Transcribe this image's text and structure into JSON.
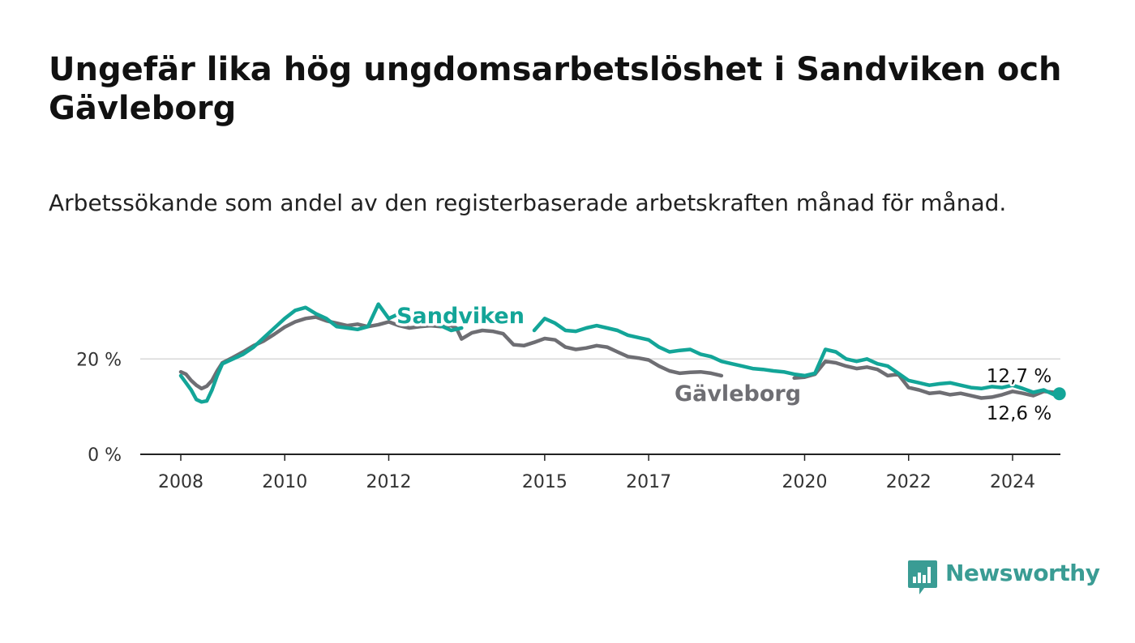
{
  "title": "Ungefär lika hög ungdomsarbetslöshet i Sandviken och Gävleborg",
  "subtitle": "Arbetssökande som andel av den registerbaserade arbetskraften månad för månad.",
  "brand": {
    "name": "Newsworthy",
    "icon": "bar-chart-speech-bubble-icon",
    "color": "#3a9c94"
  },
  "chart_data": {
    "type": "line",
    "xlim": [
      2008,
      2025.7
    ],
    "ylim": [
      0,
      35
    ],
    "y_ticks": [
      0,
      20
    ],
    "y_tick_labels": [
      "0 %",
      "20 %"
    ],
    "x_ticks": [
      2008,
      2010,
      2012,
      2015,
      2017,
      2020,
      2022,
      2024
    ],
    "x_tick_labels": [
      "2008",
      "2010",
      "2012",
      "2015",
      "2017",
      "2020",
      "2022",
      "2024"
    ],
    "grid": "horizontal",
    "series": [
      {
        "name": "Gävleborg",
        "color": "#6e6e73",
        "end_label": "12,6 %",
        "points": [
          [
            2008.0,
            17.3
          ],
          [
            2008.1,
            16.8
          ],
          [
            2008.2,
            15.5
          ],
          [
            2008.3,
            14.5
          ],
          [
            2008.4,
            13.8
          ],
          [
            2008.5,
            14.3
          ],
          [
            2008.6,
            15.5
          ],
          [
            2008.7,
            17.5
          ],
          [
            2008.8,
            19.2
          ],
          [
            2009.0,
            20.3
          ],
          [
            2009.2,
            21.5
          ],
          [
            2009.4,
            22.8
          ],
          [
            2009.6,
            23.8
          ],
          [
            2009.8,
            25.2
          ],
          [
            2010.0,
            26.7
          ],
          [
            2010.2,
            27.8
          ],
          [
            2010.4,
            28.5
          ],
          [
            2010.6,
            28.8
          ],
          [
            2010.8,
            28.0
          ],
          [
            2011.0,
            27.5
          ],
          [
            2011.2,
            27.0
          ],
          [
            2011.4,
            27.3
          ],
          [
            2011.6,
            26.8
          ],
          [
            2011.8,
            27.2
          ],
          [
            2012.0,
            27.8
          ],
          [
            2012.2,
            27.0
          ],
          [
            2012.4,
            26.5
          ],
          [
            2012.6,
            26.8
          ],
          [
            2012.8,
            27.0
          ],
          [
            2013.0,
            26.8
          ],
          [
            2013.2,
            27.0
          ],
          [
            2013.3,
            26.5
          ],
          [
            2013.4,
            24.2
          ],
          [
            2013.6,
            25.5
          ],
          [
            2013.8,
            26.0
          ],
          [
            2014.0,
            25.8
          ],
          [
            2014.2,
            25.3
          ],
          [
            2014.4,
            23.0
          ],
          [
            2014.6,
            22.8
          ],
          [
            2014.8,
            23.5
          ],
          [
            2015.0,
            24.3
          ],
          [
            2015.2,
            24.0
          ],
          [
            2015.4,
            22.5
          ],
          [
            2015.6,
            22.0
          ],
          [
            2015.8,
            22.3
          ],
          [
            2016.0,
            22.8
          ],
          [
            2016.2,
            22.5
          ],
          [
            2016.4,
            21.5
          ],
          [
            2016.6,
            20.5
          ],
          [
            2016.8,
            20.2
          ],
          [
            2017.0,
            19.8
          ],
          [
            2017.2,
            18.5
          ],
          [
            2017.4,
            17.5
          ],
          [
            2017.6,
            17.0
          ],
          [
            2017.8,
            17.2
          ],
          [
            2018.0,
            17.3
          ],
          [
            2018.2,
            17.0
          ],
          [
            2018.4,
            16.5
          ],
          [
            2019.8,
            16.0
          ],
          [
            2020.0,
            16.2
          ],
          [
            2020.2,
            16.8
          ],
          [
            2020.4,
            19.5
          ],
          [
            2020.6,
            19.2
          ],
          [
            2020.8,
            18.5
          ],
          [
            2021.0,
            18.0
          ],
          [
            2021.2,
            18.3
          ],
          [
            2021.4,
            17.8
          ],
          [
            2021.6,
            16.5
          ],
          [
            2021.8,
            16.8
          ],
          [
            2022.0,
            14.0
          ],
          [
            2022.2,
            13.5
          ],
          [
            2022.4,
            12.8
          ],
          [
            2022.6,
            13.0
          ],
          [
            2022.8,
            12.5
          ],
          [
            2023.0,
            12.8
          ],
          [
            2023.2,
            12.3
          ],
          [
            2023.4,
            11.8
          ],
          [
            2023.6,
            12.0
          ],
          [
            2023.8,
            12.5
          ],
          [
            2024.0,
            13.2
          ],
          [
            2024.2,
            12.8
          ],
          [
            2024.4,
            12.3
          ],
          [
            2024.6,
            13.2
          ],
          [
            2024.8,
            13.0
          ],
          [
            2024.9,
            12.6
          ]
        ]
      },
      {
        "name": "Sandviken",
        "color": "#13a598",
        "end_label": "12,7 %",
        "points": [
          [
            2008.0,
            16.5
          ],
          [
            2008.1,
            15.0
          ],
          [
            2008.2,
            13.5
          ],
          [
            2008.3,
            11.5
          ],
          [
            2008.4,
            11.0
          ],
          [
            2008.5,
            11.2
          ],
          [
            2008.6,
            13.5
          ],
          [
            2008.7,
            16.5
          ],
          [
            2008.8,
            19.0
          ],
          [
            2009.0,
            20.0
          ],
          [
            2009.2,
            21.0
          ],
          [
            2009.4,
            22.5
          ],
          [
            2009.6,
            24.5
          ],
          [
            2009.8,
            26.5
          ],
          [
            2010.0,
            28.5
          ],
          [
            2010.2,
            30.2
          ],
          [
            2010.4,
            30.8
          ],
          [
            2010.6,
            29.5
          ],
          [
            2010.8,
            28.5
          ],
          [
            2011.0,
            26.8
          ],
          [
            2011.2,
            26.5
          ],
          [
            2011.4,
            26.2
          ],
          [
            2011.6,
            26.8
          ],
          [
            2011.8,
            31.5
          ],
          [
            2012.0,
            28.5
          ],
          [
            2012.2,
            29.5
          ],
          [
            2012.4,
            30.0
          ],
          [
            2012.6,
            29.0
          ],
          [
            2012.8,
            28.0
          ],
          [
            2013.0,
            27.0
          ],
          [
            2013.2,
            26.0
          ],
          [
            2013.4,
            26.5
          ],
          [
            2014.8,
            26.0
          ],
          [
            2015.0,
            28.5
          ],
          [
            2015.2,
            27.5
          ],
          [
            2015.4,
            26.0
          ],
          [
            2015.6,
            25.8
          ],
          [
            2015.8,
            26.5
          ],
          [
            2016.0,
            27.0
          ],
          [
            2016.2,
            26.5
          ],
          [
            2016.4,
            26.0
          ],
          [
            2016.6,
            25.0
          ],
          [
            2016.8,
            24.5
          ],
          [
            2017.0,
            24.0
          ],
          [
            2017.2,
            22.5
          ],
          [
            2017.4,
            21.5
          ],
          [
            2017.6,
            21.8
          ],
          [
            2017.8,
            22.0
          ],
          [
            2018.0,
            21.0
          ],
          [
            2018.2,
            20.5
          ],
          [
            2018.4,
            19.5
          ],
          [
            2018.6,
            19.0
          ],
          [
            2018.8,
            18.5
          ],
          [
            2019.0,
            18.0
          ],
          [
            2019.2,
            17.8
          ],
          [
            2019.4,
            17.5
          ],
          [
            2019.6,
            17.3
          ],
          [
            2019.8,
            16.8
          ],
          [
            2020.0,
            16.5
          ],
          [
            2020.2,
            17.0
          ],
          [
            2020.4,
            22.0
          ],
          [
            2020.6,
            21.5
          ],
          [
            2020.8,
            20.0
          ],
          [
            2021.0,
            19.5
          ],
          [
            2021.2,
            20.0
          ],
          [
            2021.4,
            19.0
          ],
          [
            2021.6,
            18.5
          ],
          [
            2021.8,
            17.0
          ],
          [
            2022.0,
            15.5
          ],
          [
            2022.2,
            15.0
          ],
          [
            2022.4,
            14.5
          ],
          [
            2022.6,
            14.8
          ],
          [
            2022.8,
            15.0
          ],
          [
            2023.0,
            14.5
          ],
          [
            2023.2,
            14.0
          ],
          [
            2023.4,
            13.8
          ],
          [
            2023.6,
            14.2
          ],
          [
            2023.8,
            14.0
          ],
          [
            2024.0,
            14.5
          ],
          [
            2024.2,
            13.8
          ],
          [
            2024.4,
            13.0
          ],
          [
            2024.6,
            13.5
          ],
          [
            2024.8,
            12.5
          ],
          [
            2024.9,
            12.7
          ]
        ]
      }
    ]
  }
}
